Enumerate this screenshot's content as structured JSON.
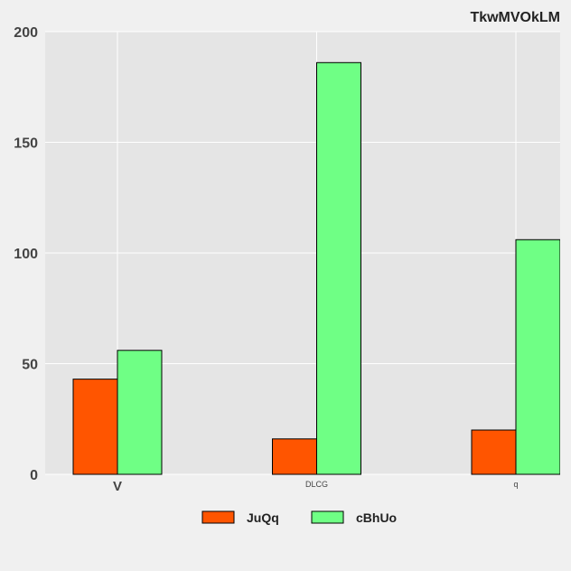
{
  "chart_data": {
    "type": "bar",
    "title": "TkwMVOkLM",
    "xlabel": "",
    "ylabel": "",
    "categories": [
      "V",
      "DLCG",
      "q"
    ],
    "series": [
      {
        "name": "JuQq",
        "values": [
          43,
          16,
          20
        ],
        "color": "#ff5500"
      },
      {
        "name": "cBhUo",
        "values": [
          56,
          186,
          106
        ],
        "color": "#6fff85"
      }
    ],
    "ylim": [
      0,
      200
    ],
    "yticks": [
      0,
      50,
      100,
      150,
      200
    ],
    "grid": true,
    "legend_position": "bottom-center",
    "colors": {
      "plot_background": "#e5e5e5",
      "page_background": "#f0f0f0",
      "grid": "#ffffff",
      "bar_edge": "#000000"
    }
  }
}
